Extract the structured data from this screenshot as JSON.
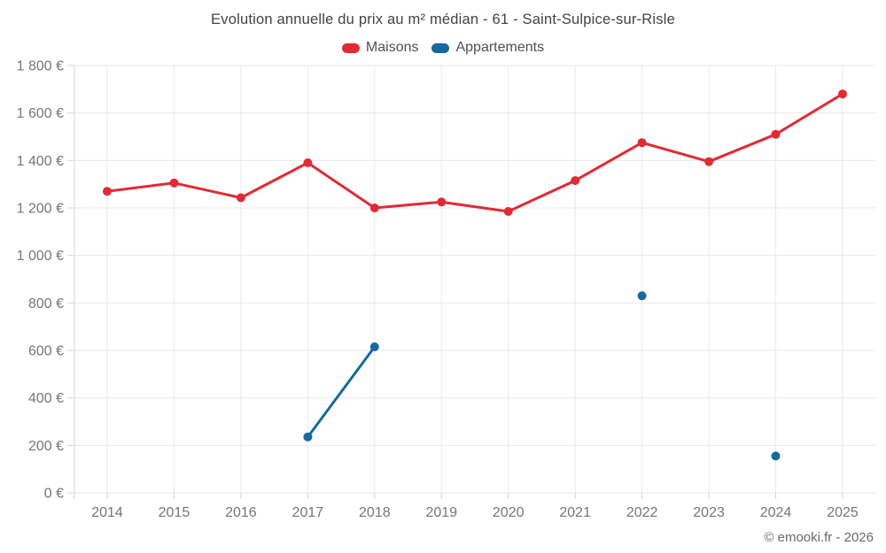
{
  "chart_data": {
    "type": "line",
    "title": "Evolution annuelle du prix au m² médian - 61 - Saint-Sulpice-sur-Risle",
    "categories": [
      "2014",
      "2015",
      "2016",
      "2017",
      "2018",
      "2019",
      "2020",
      "2021",
      "2022",
      "2023",
      "2024",
      "2025"
    ],
    "series": [
      {
        "name": "Maisons",
        "color": "#e02b35",
        "values": [
          1270,
          1305,
          1243,
          1390,
          1200,
          1225,
          1185,
          1315,
          1475,
          1395,
          1510,
          1680
        ]
      },
      {
        "name": "Appartements",
        "color": "#1569a0",
        "values": [
          null,
          null,
          null,
          235,
          615,
          null,
          null,
          null,
          830,
          null,
          155,
          null
        ]
      }
    ],
    "xlabel": "",
    "ylabel": "",
    "ylim": [
      0,
      1800
    ],
    "ytick_step": 200,
    "ytick_labels": [
      "0 €",
      "200 €",
      "400 €",
      "600 €",
      "800 €",
      "1 000 €",
      "1 200 €",
      "1 400 €",
      "1 600 €",
      "1 800 €"
    ],
    "grid": true,
    "legend_position": "top",
    "credit": "© emooki.fr - 2026",
    "colors": {
      "grid": "#eaeaea",
      "axis": "#d4d4d4",
      "tick_text": "#767676"
    }
  }
}
